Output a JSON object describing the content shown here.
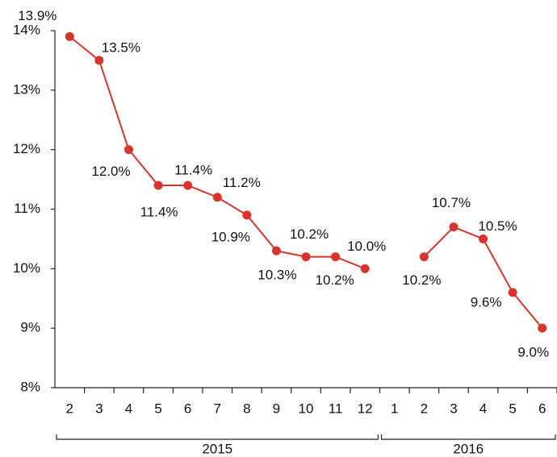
{
  "chart_data": {
    "type": "line",
    "categories": [
      "2",
      "3",
      "4",
      "5",
      "6",
      "7",
      "8",
      "9",
      "10",
      "11",
      "12",
      "1",
      "2",
      "3",
      "4",
      "5",
      "6"
    ],
    "groups": [
      {
        "label": "2015",
        "count": 11
      },
      {
        "label": "2016",
        "count": 6
      }
    ],
    "series": [
      {
        "color": "#d9342b",
        "values": [
          13.9,
          13.5,
          12.0,
          11.4,
          11.4,
          11.2,
          10.9,
          10.3,
          10.2,
          10.2,
          10.0,
          null,
          10.2,
          10.7,
          10.5,
          9.6,
          9.0
        ],
        "value_labels": [
          "13.9%",
          "13.5%",
          "12.0%",
          "11.4%",
          "11.4%",
          "11.2%",
          "10.9%",
          "10.3%",
          "10.2%",
          "10.2%",
          "10.0%",
          null,
          "10.2%",
          "10.7%",
          "10.5%",
          "9.6%",
          "9.0%"
        ]
      }
    ],
    "ylim": [
      8,
      14
    ],
    "yticks": [
      {
        "value": 8,
        "label": "8%"
      },
      {
        "value": 9,
        "label": "9%"
      },
      {
        "value": 10,
        "label": "10%"
      },
      {
        "value": 11,
        "label": "11%"
      },
      {
        "value": 12,
        "label": "12%"
      },
      {
        "value": 13,
        "label": "13%"
      },
      {
        "value": 14,
        "label": "14%"
      }
    ],
    "grid": false
  }
}
